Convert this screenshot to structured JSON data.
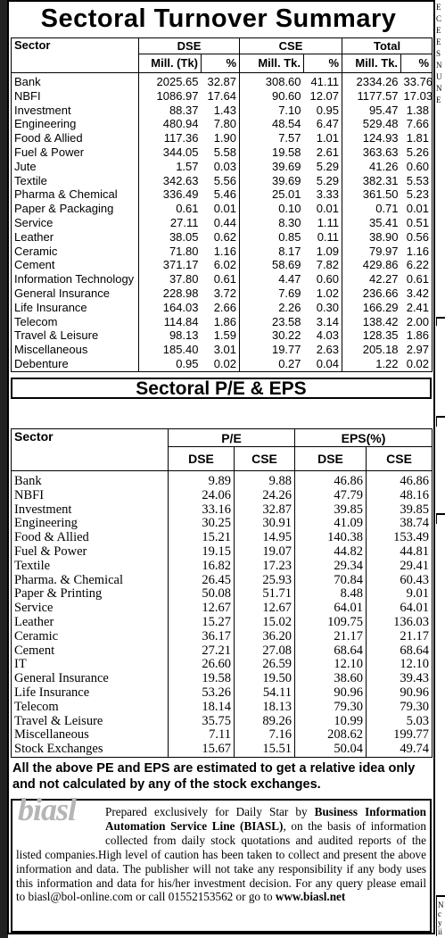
{
  "turnover": {
    "title": "Sectoral Turnover Summary",
    "header": {
      "sector": "Sector",
      "dse": "DSE",
      "cse": "CSE",
      "total": "Total",
      "mill_tk_dse": "Mill. (Tk)",
      "pct": "%",
      "mill_tk": "Mill. Tk."
    },
    "rows": [
      [
        "Bank",
        "2025.65",
        "32.87",
        "308.60",
        "41.11",
        "2334.26",
        "33.76"
      ],
      [
        "NBFI",
        "1086.97",
        "17.64",
        "90.60",
        "12.07",
        "1177.57",
        "17.03"
      ],
      [
        "Investment",
        "88.37",
        "1.43",
        "7.10",
        "0.95",
        "95.47",
        "1.38"
      ],
      [
        "Engineering",
        "480.94",
        "7.80",
        "48.54",
        "6.47",
        "529.48",
        "7.66"
      ],
      [
        "Food & Allied",
        "117.36",
        "1.90",
        "7.57",
        "1.01",
        "124.93",
        "1.81"
      ],
      [
        "Fuel & Power",
        "344.05",
        "5.58",
        "19.58",
        "2.61",
        "363.63",
        "5.26"
      ],
      [
        "Jute",
        "1.57",
        "0.03",
        "39.69",
        "5.29",
        "41.26",
        "0.60"
      ],
      [
        "Textile",
        "342.63",
        "5.56",
        "39.69",
        "5.29",
        "382.31",
        "5.53"
      ],
      [
        "Pharma & Chemical",
        "336.49",
        "5.46",
        "25.01",
        "3.33",
        "361.50",
        "5.23"
      ],
      [
        "Paper & Packaging",
        "0.61",
        "0.01",
        "0.10",
        "0.01",
        "0.71",
        "0.01"
      ],
      [
        "Service",
        "27.11",
        "0.44",
        "8.30",
        "1.11",
        "35.41",
        "0.51"
      ],
      [
        "Leather",
        "38.05",
        "0.62",
        "0.85",
        "0.11",
        "38.90",
        "0.56"
      ],
      [
        "Ceramic",
        "71.80",
        "1.16",
        "8.17",
        "1.09",
        "79.97",
        "1.16"
      ],
      [
        "Cement",
        "371.17",
        "6.02",
        "58.69",
        "7.82",
        "429.86",
        "6.22"
      ],
      [
        "Information Technology",
        "37.80",
        "0.61",
        "4.47",
        "0.60",
        "42.27",
        "0.61"
      ],
      [
        "General Insurance",
        "228.98",
        "3.72",
        "7.69",
        "1.02",
        "236.66",
        "3.42"
      ],
      [
        "Life Insurance",
        "164.03",
        "2.66",
        "2.26",
        "0.30",
        "166.29",
        "2.41"
      ],
      [
        "Telecom",
        "114.84",
        "1.86",
        "23.58",
        "3.14",
        "138.42",
        "2.00"
      ],
      [
        "Travel & Leisure",
        "98.13",
        "1.59",
        "30.22",
        "4.03",
        "128.35",
        "1.86"
      ],
      [
        "Miscellaneous",
        "185.40",
        "3.01",
        "19.77",
        "2.63",
        "205.18",
        "2.97"
      ],
      [
        "Debenture",
        "0.95",
        "0.02",
        "0.27",
        "0.04",
        "1.22",
        "0.02"
      ]
    ]
  },
  "pe_eps": {
    "title": "Sectoral P/E & EPS",
    "header": {
      "sector": "Sector",
      "pe": "P/E",
      "eps": "EPS(%)",
      "dse": "DSE",
      "cse": "CSE"
    },
    "rows": [
      [
        "Bank",
        "9.89",
        "9.88",
        "46.86",
        "46.86"
      ],
      [
        "NBFI",
        "24.06",
        "24.26",
        "47.79",
        "48.16"
      ],
      [
        "Investment",
        "33.16",
        "32.87",
        "39.85",
        "39.85"
      ],
      [
        "Engineering",
        "30.25",
        "30.91",
        "41.09",
        "38.74"
      ],
      [
        "Food & Allied",
        "15.21",
        "14.95",
        "140.38",
        "153.49"
      ],
      [
        "Fuel & Power",
        "19.15",
        "19.07",
        "44.82",
        "44.81"
      ],
      [
        "Textile",
        "16.82",
        "17.23",
        "29.34",
        "29.41"
      ],
      [
        "Pharma. & Chemical",
        "26.45",
        "25.93",
        "70.84",
        "60.43"
      ],
      [
        "Paper & Printing",
        "50.08",
        "51.71",
        "8.48",
        "9.01"
      ],
      [
        "Service",
        "12.67",
        "12.67",
        "64.01",
        "64.01"
      ],
      [
        "Leather",
        "15.27",
        "15.02",
        "109.75",
        "136.03"
      ],
      [
        "Ceramic",
        "36.17",
        "36.20",
        "21.17",
        "21.17"
      ],
      [
        "Cement",
        "27.21",
        "27.08",
        "68.64",
        "68.64"
      ],
      [
        "IT",
        "26.60",
        "26.59",
        "12.10",
        "12.10"
      ],
      [
        "General Insurance",
        "19.58",
        "19.50",
        "38.60",
        "39.43"
      ],
      [
        "Life Insurance",
        "53.26",
        "54.11",
        "90.96",
        "90.96"
      ],
      [
        "Telecom",
        "18.14",
        "18.13",
        "79.30",
        "79.30"
      ],
      [
        "Travel & Leisure",
        "35.75",
        "89.26",
        "10.99",
        "5.03"
      ],
      [
        "Miscellaneous",
        "7.11",
        "7.16",
        "208.62",
        "199.77"
      ],
      [
        "Stock Exchanges",
        "15.67",
        "15.51",
        "50.04",
        "49.74"
      ]
    ]
  },
  "note": "All the above PE and EPS are estimated to get a relative idea only and not calculated by any of the stock exchanges.",
  "credit": {
    "logo": "biasl",
    "p1": "Prepared exclusively for Daily Star by ",
    "org": "Business Information Automation Service Line (BIASL)",
    "p2": ", on the basis of information collected from daily stock quotations and audited reports of the listed companies.High level of caution has been taken to collect and present the above information and data. The publisher will not take any responsibility if any body uses this information and data for his/her investment decision. For any query please email to biasl@bol-online.com or call 01552153562 or go to ",
    "url": "www.biasl.net"
  },
  "right_clip": {
    "top_letters": [
      "E",
      "C",
      "E",
      "E",
      "S",
      "N",
      "U",
      "N",
      "E"
    ],
    "bottom_letters": [
      "N",
      "c",
      "y",
      "ii"
    ]
  }
}
